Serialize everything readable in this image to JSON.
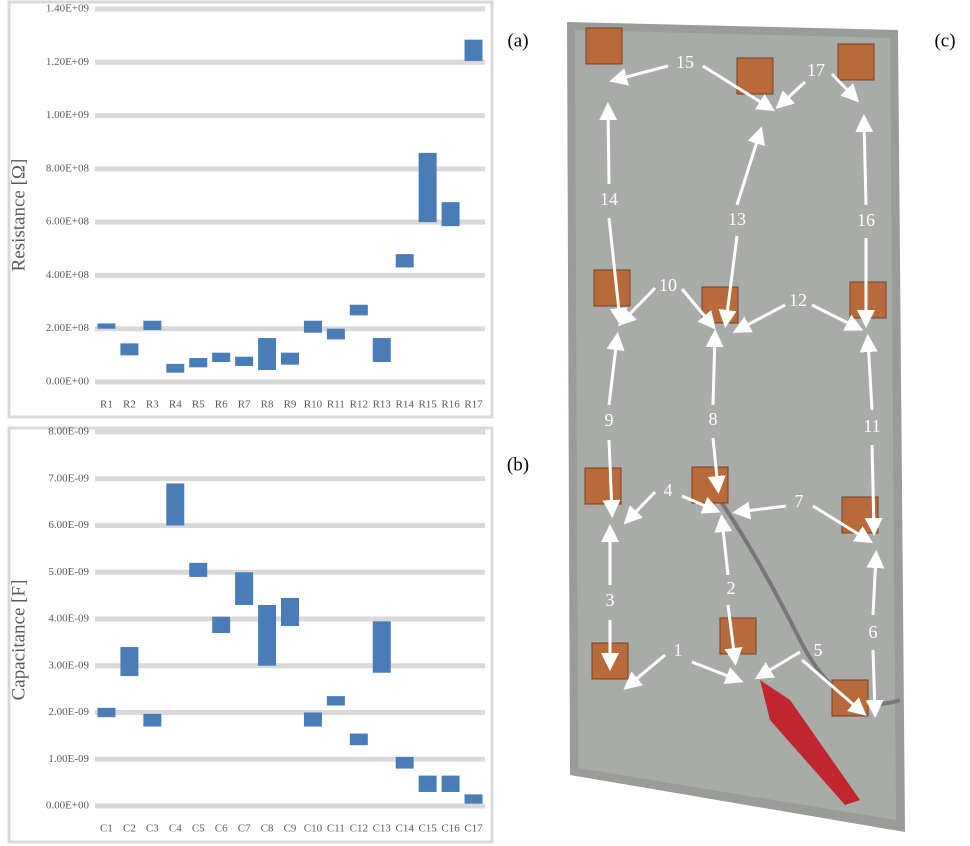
{
  "chart_data": [
    {
      "type": "box",
      "panel_label": "(a)",
      "y_label": "Resistance [Ω]",
      "color": "#4a7db8",
      "grid": true,
      "categories": [
        "R1",
        "R2",
        "R3",
        "R4",
        "R5",
        "R6",
        "R7",
        "R8",
        "R9",
        "R10",
        "R11",
        "R12",
        "R13",
        "R14",
        "R15",
        "R16",
        "R17"
      ],
      "low": [
        200000000.0,
        100000000.0,
        195000000.0,
        35000000.0,
        55000000.0,
        75000000.0,
        60000000.0,
        45000000.0,
        65000000.0,
        185000000.0,
        160000000.0,
        250000000.0,
        75000000.0,
        430000000.0,
        600000000.0,
        585000000.0,
        1205000000.0
      ],
      "high": [
        220000000.0,
        145000000.0,
        230000000.0,
        68000000.0,
        90000000.0,
        110000000.0,
        95000000.0,
        165000000.0,
        110000000.0,
        230000000.0,
        200000000.0,
        290000000.0,
        165000000.0,
        480000000.0,
        860000000.0,
        675000000.0,
        1285000000.0
      ],
      "ylim": [
        0,
        1400000000
      ],
      "yticks": [
        {
          "value": 0,
          "label": "0.00E+00"
        },
        {
          "value": 200000000,
          "label": "2.00E+08"
        },
        {
          "value": 400000000,
          "label": "4.00E+08"
        },
        {
          "value": 600000000,
          "label": "6.00E+08"
        },
        {
          "value": 800000000,
          "label": "8.00E+08"
        },
        {
          "value": 1000000000,
          "label": "1.00E+09"
        },
        {
          "value": 1200000000,
          "label": "1.20E+09"
        },
        {
          "value": 1400000000,
          "label": "1.40E+09"
        }
      ]
    },
    {
      "type": "box",
      "panel_label": "(b)",
      "y_label": "Capacitance [F]",
      "color": "#4a7db8",
      "grid": true,
      "categories": [
        "C1",
        "C2",
        "C3",
        "C4",
        "C5",
        "C6",
        "C7",
        "C8",
        "C9",
        "C10",
        "C11",
        "C12",
        "C13",
        "C14",
        "C15",
        "C16",
        "C17"
      ],
      "low": [
        1.9e-09,
        2.78e-09,
        1.7e-09,
        6e-09,
        4.9e-09,
        3.7e-09,
        4.3e-09,
        3e-09,
        3.85e-09,
        1.7e-09,
        2.15e-09,
        1.3e-09,
        2.85e-09,
        8e-10,
        3e-10,
        3e-10,
        5e-11
      ],
      "high": [
        2.1e-09,
        3.4e-09,
        1.97e-09,
        6.9e-09,
        5.2e-09,
        4.05e-09,
        5e-09,
        4.3e-09,
        4.45e-09,
        2e-09,
        2.35e-09,
        1.55e-09,
        3.95e-09,
        1.05e-09,
        6.5e-10,
        6.5e-10,
        2.5e-10
      ],
      "ylim": [
        0,
        8e-09
      ],
      "yticks": [
        {
          "value": 0,
          "label": "0.00E+00"
        },
        {
          "value": 1e-09,
          "label": "1.00E-09"
        },
        {
          "value": 2e-09,
          "label": "2.00E-09"
        },
        {
          "value": 3e-09,
          "label": "3.00E-09"
        },
        {
          "value": 4e-09,
          "label": "4.00E-09"
        },
        {
          "value": 5e-09,
          "label": "5.00E-09"
        },
        {
          "value": 6e-09,
          "label": "6.00E-09"
        },
        {
          "value": 7e-09,
          "label": "7.00E-09"
        },
        {
          "value": 8e-09,
          "label": "8.00E-09"
        }
      ]
    }
  ],
  "photo": {
    "panel_label": "(c)",
    "labels": [
      "1",
      "2",
      "3",
      "4",
      "5",
      "6",
      "7",
      "8",
      "9",
      "10",
      "11",
      "12",
      "13",
      "14",
      "15",
      "16",
      "17"
    ]
  }
}
